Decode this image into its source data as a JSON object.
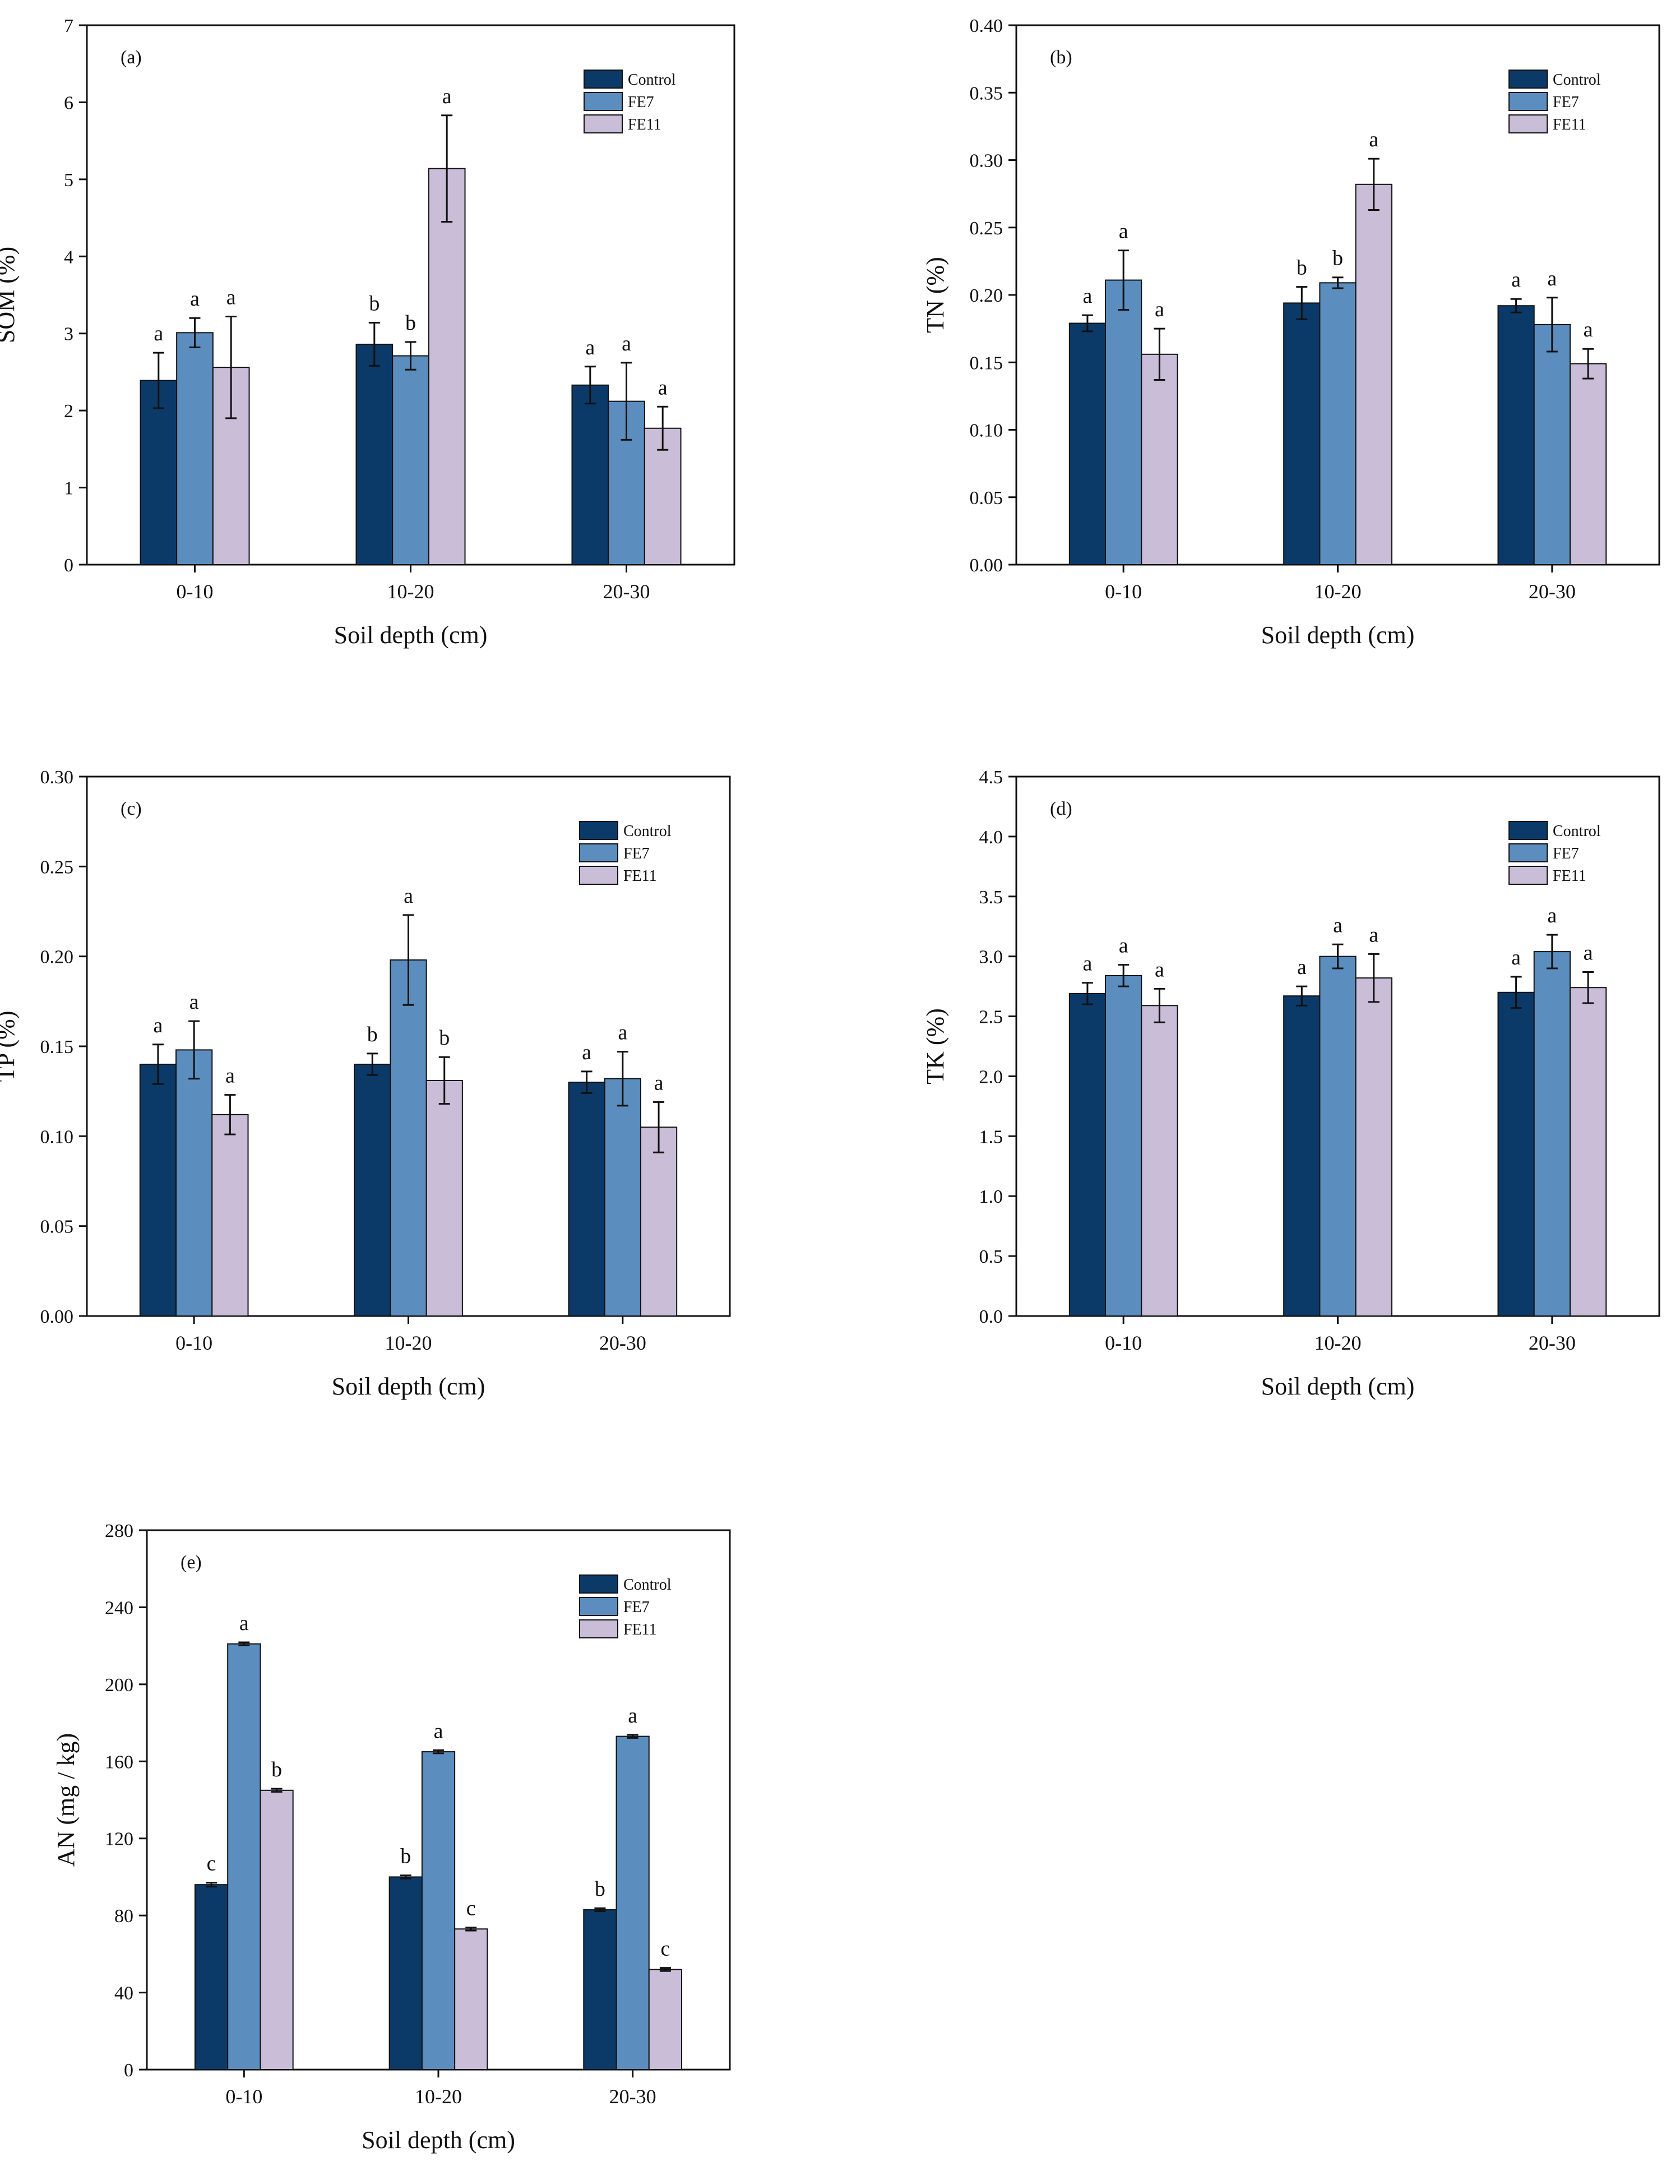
{
  "figure": {
    "panels": [
      {
        "panel_label": "(a)",
        "chart_data": {
          "type": "bar",
          "categories": [
            "0-10",
            "10-20",
            "20-30"
          ],
          "xlabel": "Soil depth (cm)",
          "ylabel": "SOM (%)",
          "ylim": [
            0,
            7
          ],
          "yticks": [
            "0",
            "1",
            "2",
            "3",
            "4",
            "5",
            "6",
            "7"
          ],
          "legend": "top-right",
          "series": [
            {
              "name": "Control",
              "color": "#0b3a69",
              "values": [
                2.39,
                2.86,
                2.33
              ],
              "errors": [
                0.36,
                0.28,
                0.24
              ],
              "letters": [
                "a",
                "b",
                "a"
              ]
            },
            {
              "name": "FE7",
              "color": "#5b8ebe",
              "values": [
                3.01,
                2.71,
                2.12
              ],
              "errors": [
                0.19,
                0.18,
                0.5
              ],
              "letters": [
                "a",
                "b",
                "a"
              ]
            },
            {
              "name": "FE11",
              "color": "#c9bdd8",
              "values": [
                2.56,
                5.14,
                1.77
              ],
              "errors": [
                0.66,
                0.69,
                0.28
              ],
              "letters": [
                "a",
                "a",
                "a"
              ]
            }
          ]
        }
      },
      {
        "panel_label": "(b)",
        "chart_data": {
          "type": "bar",
          "categories": [
            "0-10",
            "10-20",
            "20-30"
          ],
          "xlabel": "Soil depth (cm)",
          "ylabel": "TN (%)",
          "ylim": [
            0,
            0.4
          ],
          "yticks": [
            "0.00",
            "0.05",
            "0.10",
            "0.15",
            "0.20",
            "0.25",
            "0.30",
            "0.35",
            "0.40"
          ],
          "legend": "top-right",
          "series": [
            {
              "name": "Control",
              "color": "#0b3a69",
              "values": [
                0.179,
                0.194,
                0.192
              ],
              "errors": [
                0.006,
                0.012,
                0.005
              ],
              "letters": [
                "a",
                "b",
                "a"
              ]
            },
            {
              "name": "FE7",
              "color": "#5b8ebe",
              "values": [
                0.211,
                0.209,
                0.178
              ],
              "errors": [
                0.022,
                0.004,
                0.02
              ],
              "letters": [
                "a",
                "b",
                "a"
              ]
            },
            {
              "name": "FE11",
              "color": "#c9bdd8",
              "values": [
                0.156,
                0.282,
                0.149
              ],
              "errors": [
                0.019,
                0.019,
                0.011
              ],
              "letters": [
                "a",
                "a",
                "a"
              ]
            }
          ]
        }
      },
      {
        "panel_label": "(c)",
        "chart_data": {
          "type": "bar",
          "categories": [
            "0-10",
            "10-20",
            "20-30"
          ],
          "xlabel": "Soil depth (cm)",
          "ylabel": "TP (%)",
          "ylim": [
            0,
            0.3
          ],
          "yticks": [
            "0.00",
            "0.05",
            "0.10",
            "0.15",
            "0.20",
            "0.25",
            "0.30"
          ],
          "legend": "top-right",
          "series": [
            {
              "name": "Control",
              "color": "#0b3a69",
              "values": [
                0.14,
                0.14,
                0.13
              ],
              "errors": [
                0.011,
                0.006,
                0.006
              ],
              "letters": [
                "a",
                "b",
                "a"
              ]
            },
            {
              "name": "FE7",
              "color": "#5b8ebe",
              "values": [
                0.148,
                0.198,
                0.132
              ],
              "errors": [
                0.016,
                0.025,
                0.015
              ],
              "letters": [
                "a",
                "a",
                "a"
              ]
            },
            {
              "name": "FE11",
              "color": "#c9bdd8",
              "values": [
                0.112,
                0.131,
                0.105
              ],
              "errors": [
                0.011,
                0.013,
                0.014
              ],
              "letters": [
                "a",
                "b",
                "a"
              ]
            }
          ]
        }
      },
      {
        "panel_label": "(d)",
        "chart_data": {
          "type": "bar",
          "categories": [
            "0-10",
            "10-20",
            "20-30"
          ],
          "xlabel": "Soil depth (cm)",
          "ylabel": "TK (%)",
          "ylim": [
            0,
            4.5
          ],
          "yticks": [
            "0.0",
            "0.5",
            "1.0",
            "1.5",
            "2.0",
            "2.5",
            "3.0",
            "3.5",
            "4.0",
            "4.5"
          ],
          "legend": "top-right",
          "series": [
            {
              "name": "Control",
              "color": "#0b3a69",
              "values": [
                2.69,
                2.67,
                2.7
              ],
              "errors": [
                0.09,
                0.08,
                0.13
              ],
              "letters": [
                "a",
                "a",
                "a"
              ]
            },
            {
              "name": "FE7",
              "color": "#5b8ebe",
              "values": [
                2.84,
                3.0,
                3.04
              ],
              "errors": [
                0.09,
                0.1,
                0.14
              ],
              "letters": [
                "a",
                "a",
                "a"
              ]
            },
            {
              "name": "FE11",
              "color": "#c9bdd8",
              "values": [
                2.59,
                2.82,
                2.74
              ],
              "errors": [
                0.14,
                0.2,
                0.13
              ],
              "letters": [
                "a",
                "a",
                "a"
              ]
            }
          ]
        }
      },
      {
        "panel_label": "(e)",
        "chart_data": {
          "type": "bar",
          "categories": [
            "0-10",
            "10-20",
            "20-30"
          ],
          "xlabel": "Soil depth (cm)",
          "ylabel": "AN (mg / kg)",
          "ylim": [
            0,
            280
          ],
          "yticks": [
            "0",
            "40",
            "80",
            "120",
            "160",
            "200",
            "240",
            "280"
          ],
          "legend": "top-right",
          "series": [
            {
              "name": "Control",
              "color": "#0b3a69",
              "values": [
                96,
                100,
                83
              ],
              "errors": [
                1,
                0.8,
                0.8
              ],
              "letters": [
                "c",
                "b",
                "b"
              ]
            },
            {
              "name": "FE7",
              "color": "#5b8ebe",
              "values": [
                221,
                165,
                173
              ],
              "errors": [
                0.8,
                0.8,
                0.8
              ],
              "letters": [
                "a",
                "a",
                "a"
              ]
            },
            {
              "name": "FE11",
              "color": "#c9bdd8",
              "values": [
                145,
                73,
                52
              ],
              "errors": [
                0.8,
                0.8,
                0.8
              ],
              "letters": [
                "b",
                "c",
                "c"
              ]
            }
          ]
        }
      }
    ]
  }
}
